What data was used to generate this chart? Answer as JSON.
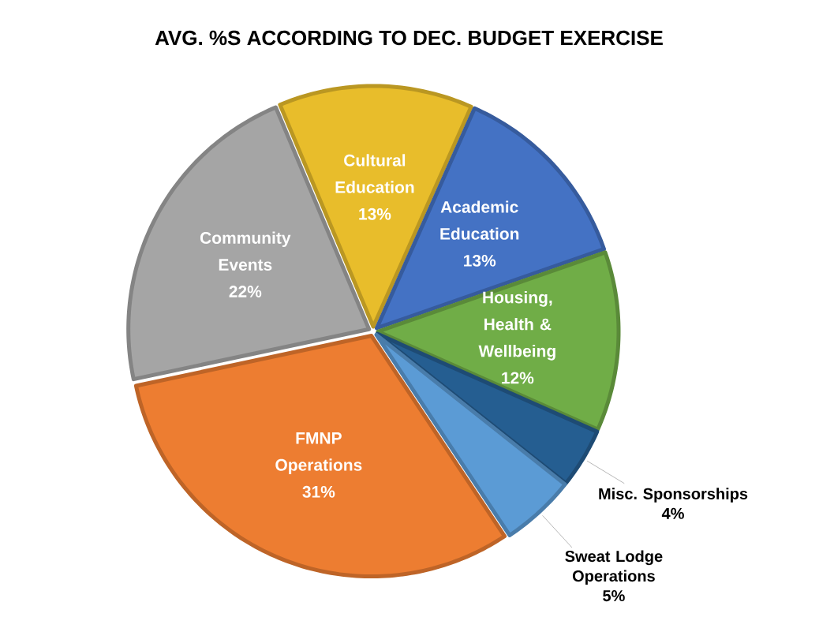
{
  "chart_data": {
    "type": "pie",
    "title": "AVG. %S ACCORDING TO DEC. BUDGET EXERCISE",
    "categories": [
      "Cultural Education",
      "Academic Education",
      "Housing, Health & Wellbeing",
      "Misc. Sponsorships",
      "Sweat Lodge Operations",
      "FMNP Operations",
      "Community Events"
    ],
    "values": [
      13,
      13,
      12,
      4,
      5,
      31,
      22
    ],
    "value_labels": [
      "13%",
      "13%",
      "12%",
      "4%",
      "5%",
      "31%",
      "22%"
    ],
    "colors": [
      "#e8bd2b",
      "#4472c4",
      "#70ad47",
      "#255e91",
      "#5b9bd5",
      "#ed7d31",
      "#a5a5a5"
    ]
  }
}
